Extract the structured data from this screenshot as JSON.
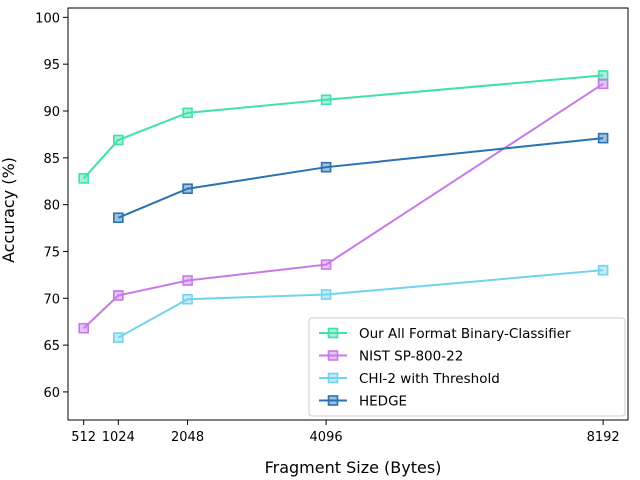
{
  "chart_data": {
    "type": "line",
    "xlabel": "Fragment Size (Bytes)",
    "ylabel": "Accuracy (%)",
    "x_ticks": [
      512,
      1024,
      2048,
      4096,
      8192
    ],
    "y_ticks": [
      60,
      65,
      70,
      75,
      80,
      85,
      90,
      95,
      100
    ],
    "xlim": [
      280,
      8560
    ],
    "ylim": [
      57,
      101
    ],
    "grid": false,
    "legend_position": "lower-right",
    "series": [
      {
        "name": "Our All Format Binary-Classifier",
        "color": "#40e0b0",
        "x": [
          512,
          1024,
          2048,
          4096,
          8192
        ],
        "y": [
          82.8,
          86.9,
          89.8,
          91.2,
          93.8
        ]
      },
      {
        "name": "NIST SP-800-22",
        "color": "#c879e8",
        "x": [
          512,
          1024,
          2048,
          4096,
          8192
        ],
        "y": [
          66.8,
          70.3,
          71.9,
          73.6,
          92.9
        ]
      },
      {
        "name": "CHI-2 with Threshold",
        "color": "#73d3ee",
        "x": [
          1024,
          2048,
          4096,
          8192
        ],
        "y": [
          65.8,
          69.9,
          70.4,
          73.0
        ]
      },
      {
        "name": "HEDGE",
        "color": "#2a72b2",
        "x": [
          1024,
          2048,
          4096,
          8192
        ],
        "y": [
          78.6,
          81.7,
          84.0,
          87.1
        ]
      }
    ]
  }
}
